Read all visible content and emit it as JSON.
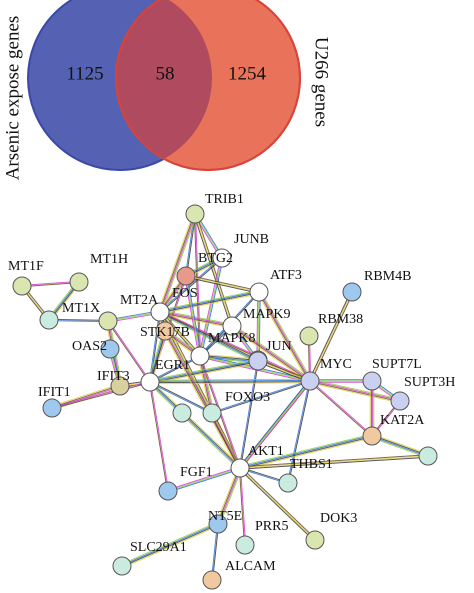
{
  "venn": {
    "left_label": "Arsenic expose genes",
    "right_label": "U266 genes",
    "left_only": "1125",
    "overlap": "58",
    "right_only": "1254"
  },
  "network": {
    "nodes": [
      "TRIB1",
      "JUNB",
      "BTG2",
      "ATF3",
      "RBM4B",
      "MT1F",
      "MT1H",
      "MT1X",
      "MT2A",
      "FOS",
      "STK17B",
      "MAPK9",
      "RBM38",
      "OAS2",
      "MAPK8",
      "JUN",
      "MYC",
      "SUPT7L",
      "SUPT3H",
      "EGR1",
      "IFIT3",
      "IFIT1",
      "FOXO3",
      "KAT2A",
      "AKT1",
      "THBS1",
      "FGF1",
      "NT5E",
      "PRR5",
      "DOK3",
      "SLC29A1",
      "ALCAM"
    ]
  }
}
